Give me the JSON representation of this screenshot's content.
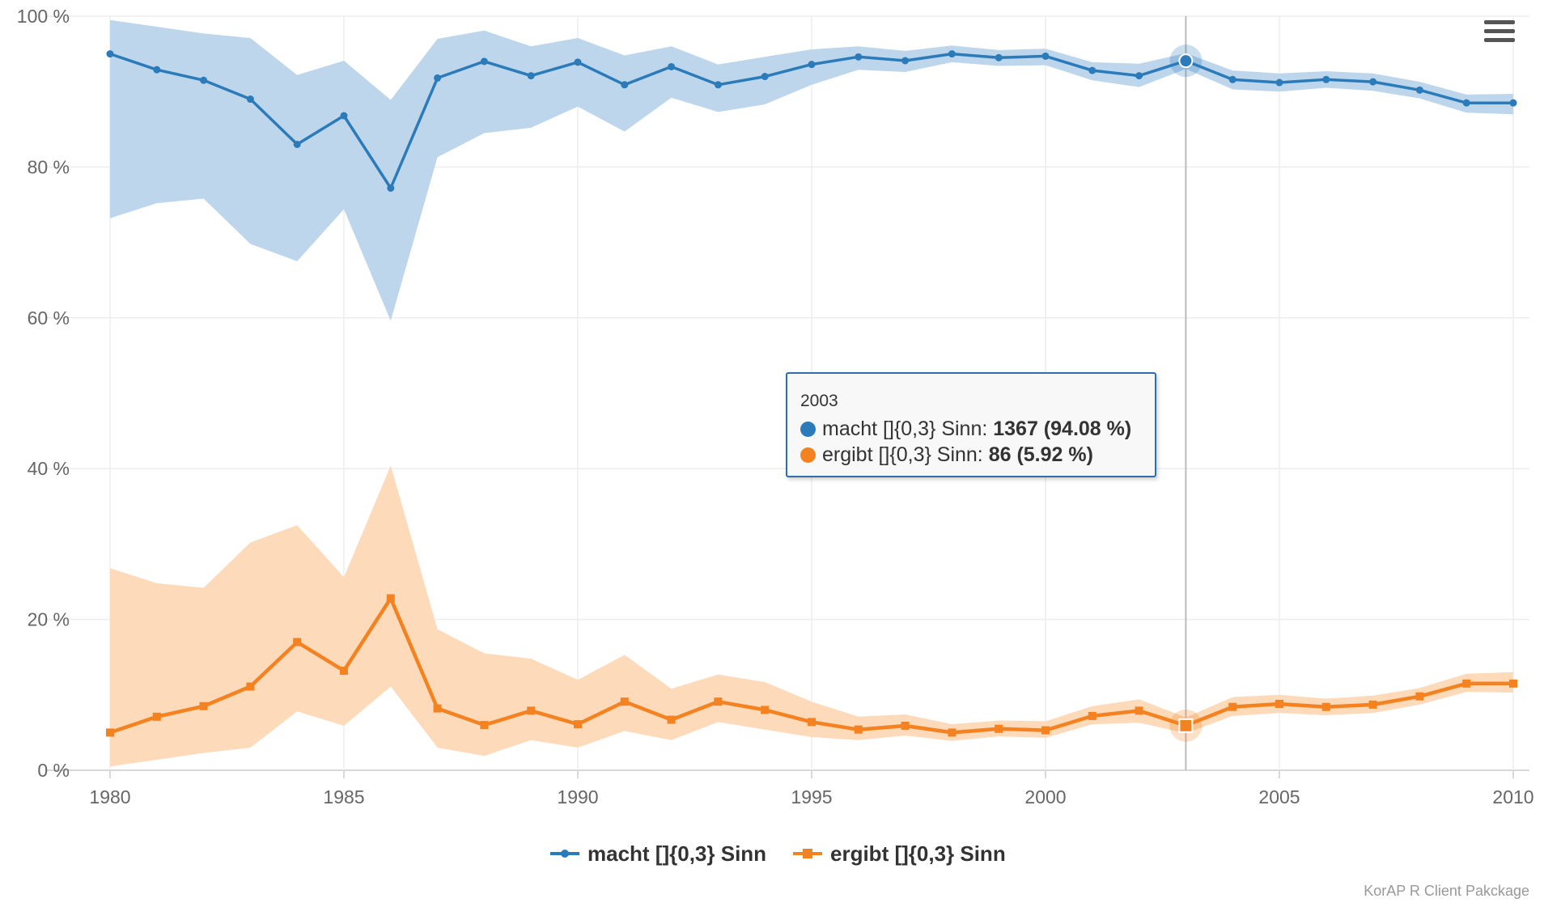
{
  "chart_data": {
    "type": "line",
    "x": [
      1980,
      1981,
      1982,
      1983,
      1984,
      1985,
      1986,
      1987,
      1988,
      1989,
      1990,
      1991,
      1992,
      1993,
      1994,
      1995,
      1996,
      1997,
      1998,
      1999,
      2000,
      2001,
      2002,
      2003,
      2004,
      2005,
      2006,
      2007,
      2008,
      2009,
      2010
    ],
    "series": [
      {
        "name": "macht []{0,3} Sinn",
        "color": "#2b7bba",
        "band_color": "#b9d4ea",
        "values": [
          95.0,
          92.9,
          91.5,
          89.0,
          83.0,
          86.8,
          77.2,
          91.8,
          94.0,
          92.1,
          93.9,
          90.9,
          93.3,
          90.9,
          92.0,
          93.6,
          94.6,
          94.1,
          95.0,
          94.5,
          94.7,
          92.8,
          92.1,
          94.08,
          91.6,
          91.2,
          91.6,
          91.3,
          90.2,
          88.5,
          88.5
        ],
        "lower": [
          73.2,
          75.2,
          75.8,
          69.8,
          67.5,
          74.4,
          59.6,
          81.3,
          84.5,
          85.2,
          88.0,
          84.7,
          89.2,
          87.3,
          88.3,
          90.9,
          92.9,
          92.6,
          93.9,
          93.4,
          93.5,
          91.5,
          90.6,
          93.0,
          90.3,
          90.0,
          90.5,
          90.1,
          89.1,
          87.2,
          87.0
        ],
        "upper": [
          99.5,
          98.6,
          97.7,
          97.1,
          92.2,
          94.1,
          88.9,
          97.0,
          98.1,
          96.0,
          97.1,
          94.8,
          96.0,
          93.6,
          94.6,
          95.6,
          96.0,
          95.4,
          96.1,
          95.5,
          95.7,
          93.9,
          93.7,
          95.1,
          92.8,
          92.4,
          92.7,
          92.4,
          91.3,
          89.6,
          89.7
        ]
      },
      {
        "name": "ergibt []{0,3} Sinn",
        "color": "#f58220",
        "band_color": "#fdd8b5",
        "values": [
          5.0,
          7.1,
          8.5,
          11.1,
          17.0,
          13.2,
          22.8,
          8.2,
          6.0,
          7.9,
          6.1,
          9.1,
          6.7,
          9.1,
          8.0,
          6.4,
          5.4,
          5.9,
          5.0,
          5.5,
          5.3,
          7.2,
          7.9,
          5.92,
          8.4,
          8.8,
          8.4,
          8.7,
          9.8,
          11.5,
          11.5
        ],
        "lower": [
          0.5,
          1.4,
          2.3,
          3.0,
          7.8,
          5.9,
          11.1,
          3.0,
          1.9,
          4.0,
          3.0,
          5.2,
          4.0,
          6.4,
          5.4,
          4.4,
          4.0,
          4.6,
          3.9,
          4.5,
          4.3,
          6.1,
          6.3,
          4.9,
          7.2,
          7.6,
          7.3,
          7.6,
          8.7,
          10.4,
          10.3
        ],
        "upper": [
          26.8,
          24.8,
          24.2,
          30.2,
          32.5,
          25.6,
          40.4,
          18.7,
          15.5,
          14.8,
          12.0,
          15.3,
          10.8,
          12.7,
          11.7,
          9.1,
          7.1,
          7.4,
          6.1,
          6.6,
          6.5,
          8.5,
          9.4,
          7.0,
          9.7,
          10.0,
          9.5,
          9.9,
          10.9,
          12.8,
          13.0
        ]
      }
    ],
    "x_ticks": [
      "1980",
      "1985",
      "1990",
      "1995",
      "2000",
      "2005",
      "2010"
    ],
    "y_ticks": [
      "0 %",
      "20 %",
      "40 %",
      "60 %",
      "80 %",
      "100 %"
    ],
    "xlim": [
      1980,
      2010
    ],
    "ylim": [
      0,
      100
    ],
    "grid": true,
    "legend_position": "bottom-center",
    "hover_x": 2003
  },
  "tooltip": {
    "year": "2003",
    "rows": [
      {
        "label": "macht []{0,3} Sinn: ",
        "value": "1367 (94.08 %)",
        "color": "#2b7bba"
      },
      {
        "label": "ergibt []{0,3} Sinn: ",
        "value": "86 (5.92 %)",
        "color": "#f58220"
      }
    ]
  },
  "credits": "KorAP R Client Pakckage",
  "menu": {
    "icon": "hamburger-menu-icon"
  }
}
